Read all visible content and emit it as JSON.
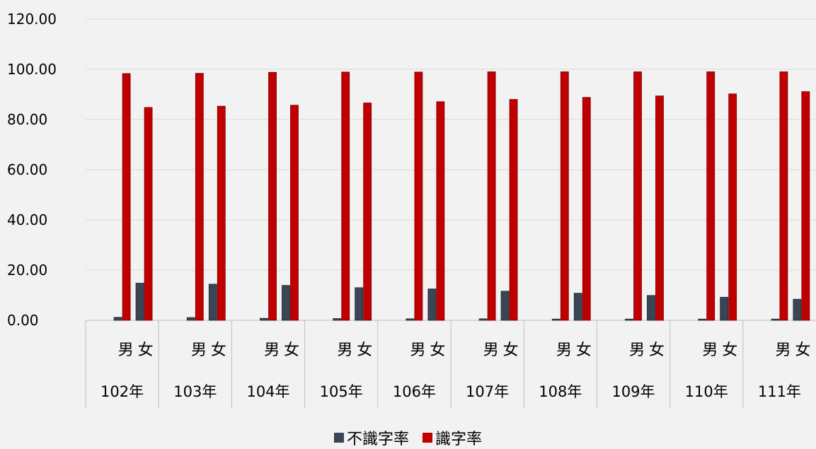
{
  "chart_data": {
    "type": "bar",
    "categories": [
      "男",
      "女",
      "男",
      "女",
      "男",
      "女",
      "男",
      "女",
      "男",
      "女",
      "男",
      "女",
      "男",
      "女",
      "男",
      "女",
      "男",
      "女",
      "男",
      "女"
    ],
    "groups": [
      "102年",
      "103年",
      "104年",
      "105年",
      "106年",
      "107年",
      "108年",
      "109年",
      "110年",
      "111年"
    ],
    "series": [
      {
        "name": "不識字率",
        "color": "#3a4556",
        "values": [
          1.2,
          14.8,
          1.1,
          14.4,
          0.8,
          13.9,
          0.7,
          13.0,
          0.6,
          12.5,
          0.6,
          11.6,
          0.5,
          10.8,
          0.5,
          9.9,
          0.5,
          9.2,
          0.5,
          8.4
        ]
      },
      {
        "name": "識字率",
        "color": "#c00000",
        "values": [
          98.3,
          84.8,
          98.4,
          85.3,
          98.8,
          85.7,
          98.9,
          86.6,
          98.9,
          87.1,
          99.0,
          88.0,
          99.0,
          88.8,
          99.0,
          89.4,
          99.0,
          90.2,
          99.0,
          91.1
        ]
      }
    ],
    "yticks": [
      "120.00",
      "100.00",
      "80.00",
      "60.00",
      "40.00",
      "20.00",
      "0.00"
    ],
    "ylim": [
      0,
      120
    ],
    "grid": true,
    "legend_position": "bottom"
  }
}
